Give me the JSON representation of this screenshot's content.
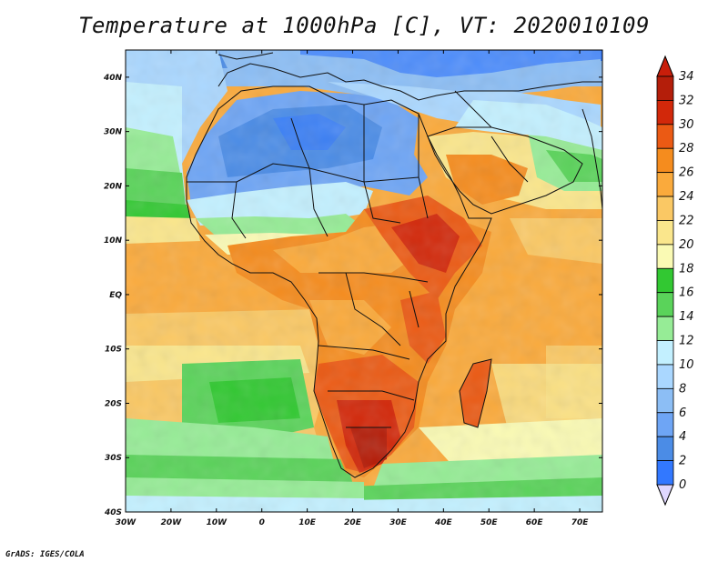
{
  "title": "Temperature at 1000hPa [C], VT: 2020010109",
  "credit": "GrADS: IGES/COLA",
  "map": {
    "lon_range": [
      -30,
      75
    ],
    "lat_range": [
      -40,
      45
    ],
    "lon_ticks": [
      "30W",
      "20W",
      "10W",
      "0",
      "10E",
      "20E",
      "30E",
      "40E",
      "50E",
      "60E",
      "70E"
    ],
    "lat_ticks": [
      "40N",
      "30N",
      "20N",
      "10N",
      "EQ",
      "10S",
      "20S",
      "30S",
      "40S"
    ]
  },
  "colorbar": {
    "labels": [
      "34",
      "32",
      "30",
      "28",
      "26",
      "24",
      "22",
      "20",
      "18",
      "16",
      "14",
      "12",
      "10",
      "8",
      "6",
      "4",
      "2",
      "0"
    ],
    "colors": [
      "#190c87",
      "#1e3cff",
      "#3278ff",
      "#4b8ce6",
      "#6ea5f5",
      "#8cbef5",
      "#aad7ff",
      "#c3f0ff",
      "#96ec96",
      "#5ad35a",
      "#32c832",
      "#fafab4",
      "#fae68c",
      "#fac864",
      "#faaa3c",
      "#f58c1e",
      "#eb5a14",
      "#d2280a",
      "#b41e0a"
    ],
    "tip_bottom_color": "#e0d8ff",
    "tip_top_color": "#c81e0a"
  }
}
